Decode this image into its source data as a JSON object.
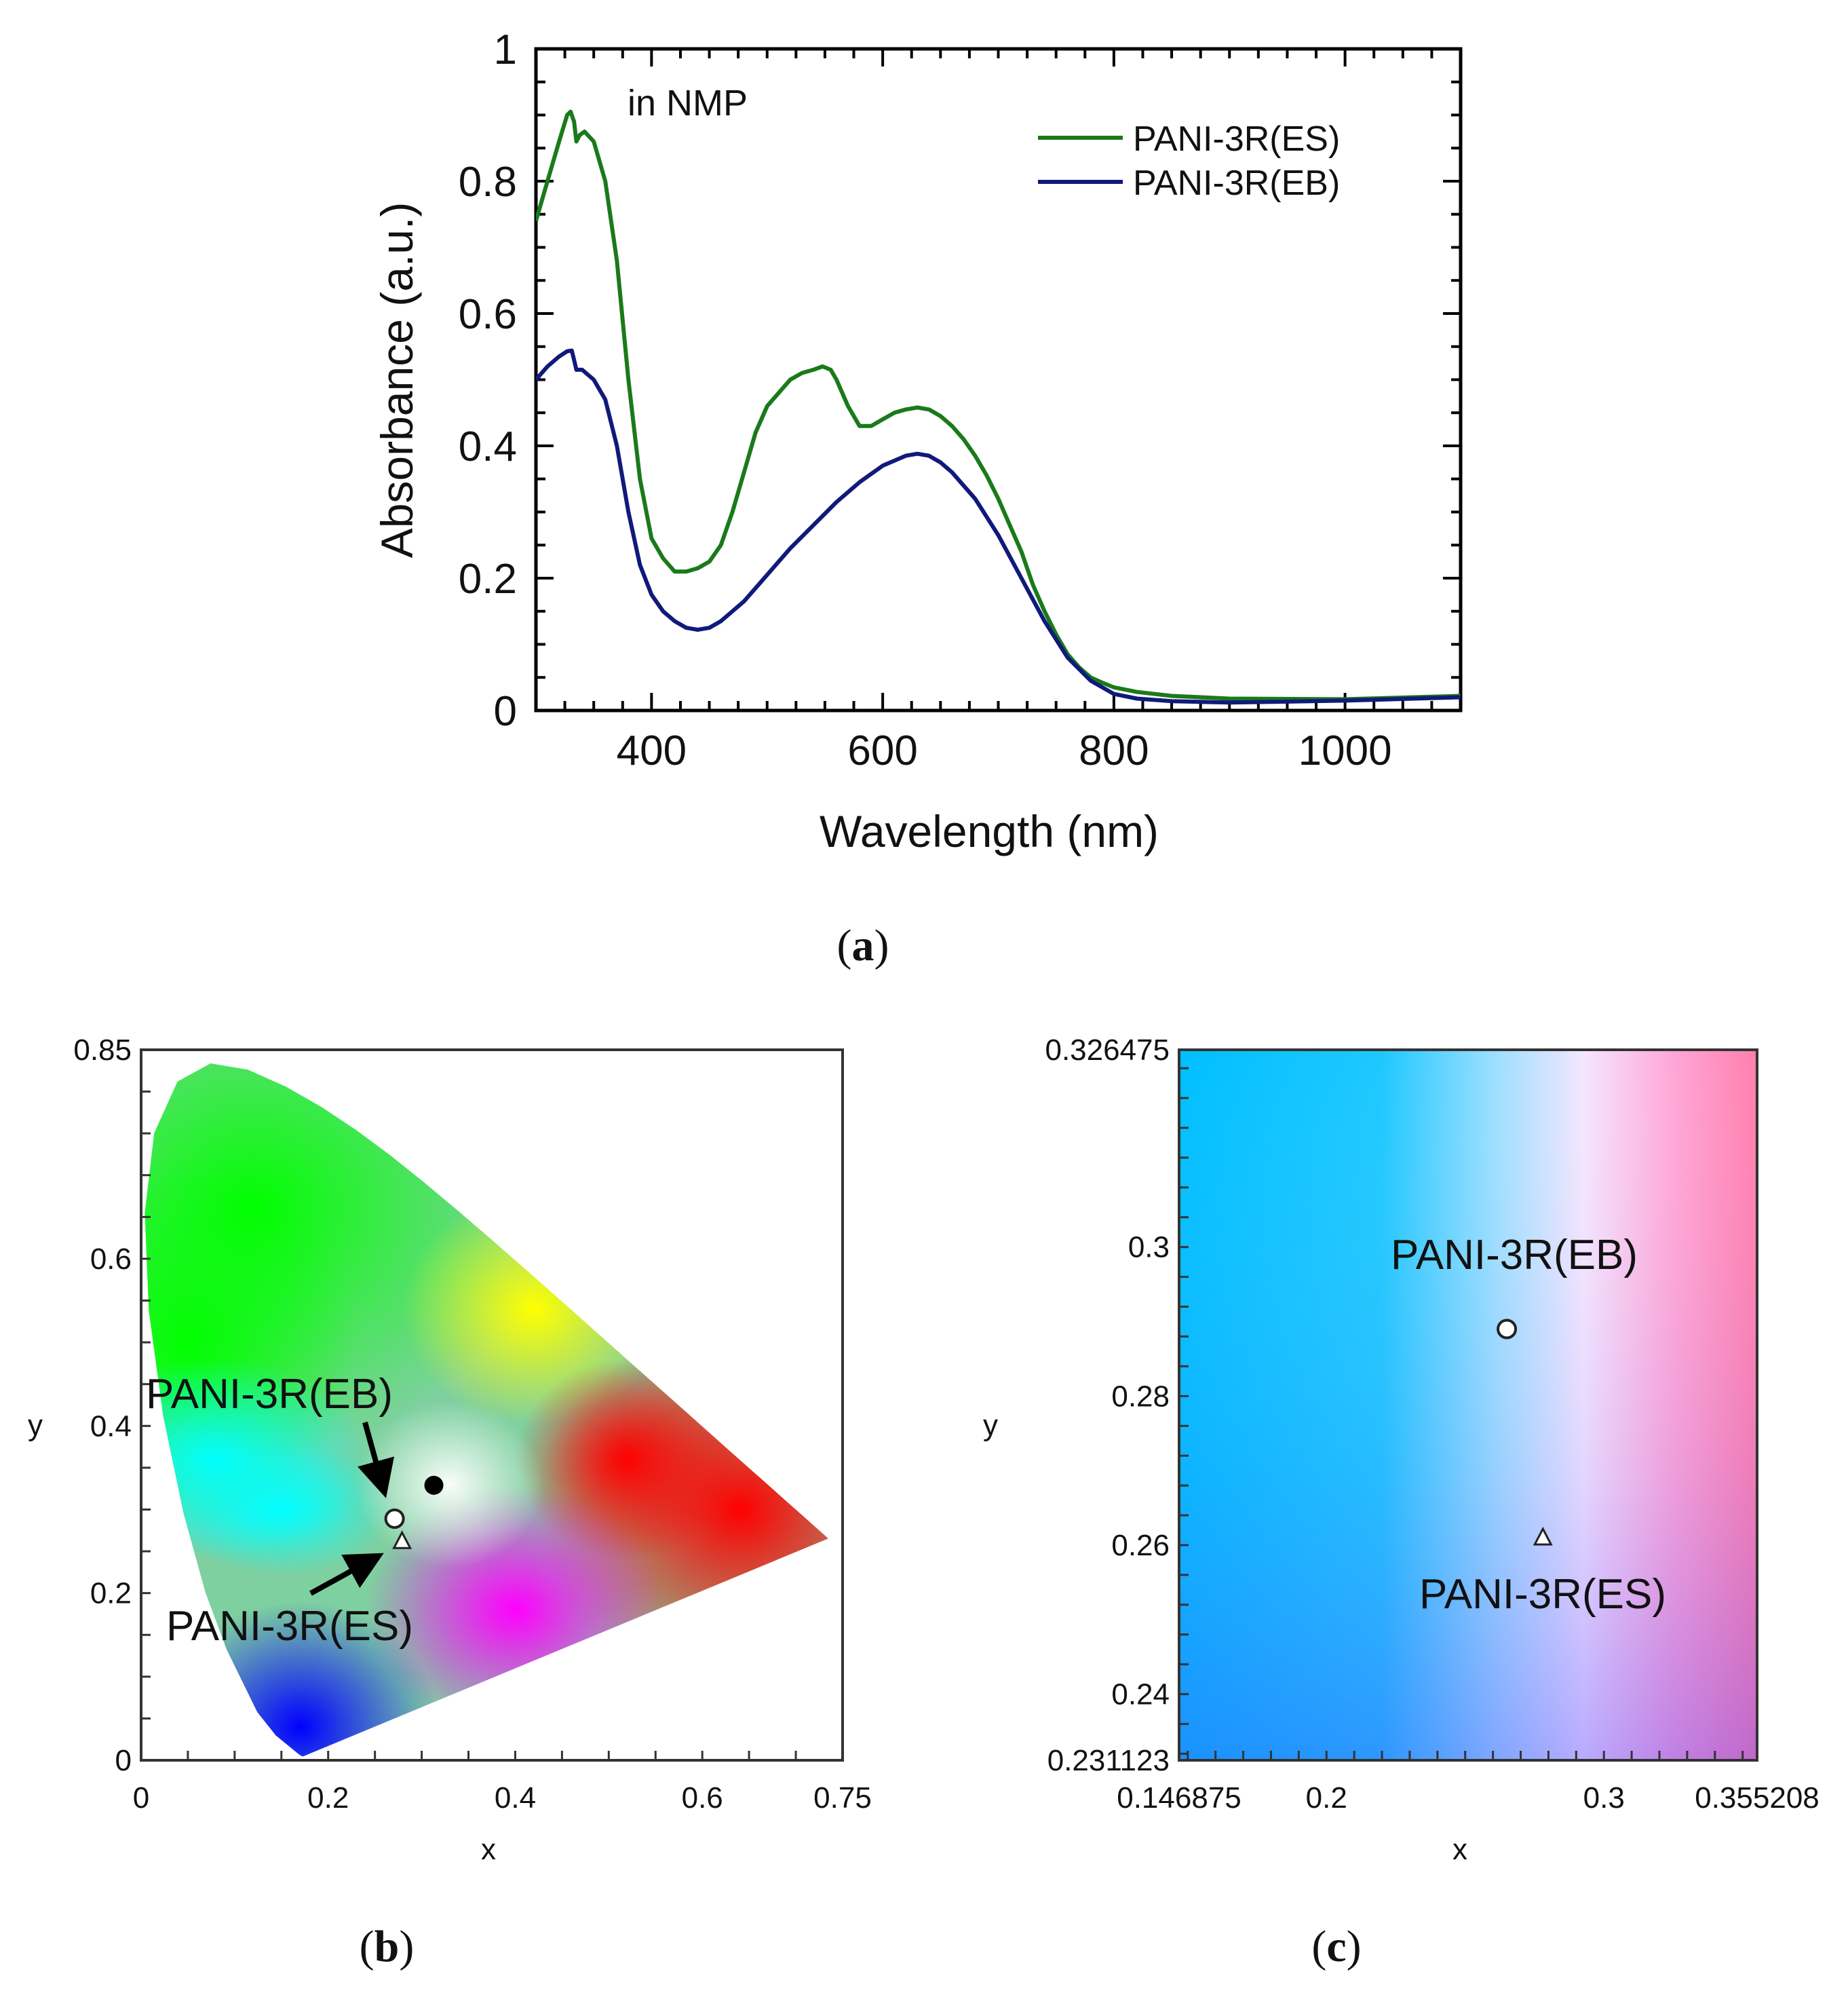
{
  "chart_data": [
    {
      "id": "a",
      "type": "line",
      "panel_label_open": "(",
      "panel_label_letter": "a",
      "panel_label_close": ")",
      "annotation": "in NMP",
      "xlabel": "Wavelength (nm)",
      "ylabel": "Absorbance (a.u.)",
      "xlim": [
        300,
        1100
      ],
      "ylim": [
        0,
        1
      ],
      "xticks": [
        400,
        600,
        800,
        1000
      ],
      "yticks": [
        0,
        0.2,
        0.4,
        0.6,
        0.8,
        1
      ],
      "ytick_labels": [
        "0",
        "0.2",
        "0.4",
        "0.6",
        "0.8",
        "1"
      ],
      "legend_position": "top-right",
      "series": [
        {
          "name": "PANI-3R(ES)",
          "color": "#1a7a1a",
          "points": [
            [
              300,
              0.74
            ],
            [
              310,
              0.8
            ],
            [
              320,
              0.86
            ],
            [
              327,
              0.9
            ],
            [
              330,
              0.905
            ],
            [
              333,
              0.89
            ],
            [
              335,
              0.86
            ],
            [
              338,
              0.87
            ],
            [
              342,
              0.875
            ],
            [
              350,
              0.86
            ],
            [
              360,
              0.8
            ],
            [
              370,
              0.68
            ],
            [
              380,
              0.5
            ],
            [
              390,
              0.35
            ],
            [
              400,
              0.26
            ],
            [
              410,
              0.23
            ],
            [
              420,
              0.21
            ],
            [
              430,
              0.21
            ],
            [
              440,
              0.215
            ],
            [
              450,
              0.225
            ],
            [
              460,
              0.25
            ],
            [
              470,
              0.3
            ],
            [
              480,
              0.36
            ],
            [
              490,
              0.42
            ],
            [
              500,
              0.46
            ],
            [
              510,
              0.48
            ],
            [
              520,
              0.5
            ],
            [
              530,
              0.51
            ],
            [
              540,
              0.515
            ],
            [
              548,
              0.52
            ],
            [
              555,
              0.515
            ],
            [
              560,
              0.5
            ],
            [
              570,
              0.46
            ],
            [
              580,
              0.43
            ],
            [
              590,
              0.43
            ],
            [
              600,
              0.44
            ],
            [
              610,
              0.45
            ],
            [
              620,
              0.455
            ],
            [
              630,
              0.458
            ],
            [
              640,
              0.455
            ],
            [
              650,
              0.445
            ],
            [
              660,
              0.43
            ],
            [
              670,
              0.41
            ],
            [
              680,
              0.385
            ],
            [
              690,
              0.355
            ],
            [
              700,
              0.32
            ],
            [
              710,
              0.28
            ],
            [
              720,
              0.24
            ],
            [
              730,
              0.19
            ],
            [
              740,
              0.15
            ],
            [
              750,
              0.115
            ],
            [
              760,
              0.085
            ],
            [
              770,
              0.065
            ],
            [
              780,
              0.05
            ],
            [
              790,
              0.042
            ],
            [
              800,
              0.035
            ],
            [
              820,
              0.028
            ],
            [
              850,
              0.022
            ],
            [
              900,
              0.018
            ],
            [
              1000,
              0.017
            ],
            [
              1100,
              0.022
            ]
          ]
        },
        {
          "name": "PANI-3R(EB)",
          "color": "#101a7a",
          "points": [
            [
              300,
              0.5
            ],
            [
              310,
              0.52
            ],
            [
              320,
              0.535
            ],
            [
              327,
              0.543
            ],
            [
              331,
              0.544
            ],
            [
              333,
              0.53
            ],
            [
              335,
              0.515
            ],
            [
              340,
              0.515
            ],
            [
              350,
              0.5
            ],
            [
              360,
              0.47
            ],
            [
              370,
              0.4
            ],
            [
              380,
              0.3
            ],
            [
              390,
              0.22
            ],
            [
              400,
              0.175
            ],
            [
              410,
              0.15
            ],
            [
              420,
              0.135
            ],
            [
              430,
              0.125
            ],
            [
              440,
              0.122
            ],
            [
              450,
              0.125
            ],
            [
              460,
              0.135
            ],
            [
              480,
              0.165
            ],
            [
              500,
              0.205
            ],
            [
              520,
              0.245
            ],
            [
              540,
              0.28
            ],
            [
              560,
              0.315
            ],
            [
              580,
              0.345
            ],
            [
              600,
              0.37
            ],
            [
              620,
              0.385
            ],
            [
              630,
              0.388
            ],
            [
              640,
              0.385
            ],
            [
              650,
              0.375
            ],
            [
              660,
              0.36
            ],
            [
              680,
              0.32
            ],
            [
              700,
              0.265
            ],
            [
              720,
              0.2
            ],
            [
              740,
              0.135
            ],
            [
              760,
              0.08
            ],
            [
              780,
              0.045
            ],
            [
              800,
              0.025
            ],
            [
              820,
              0.018
            ],
            [
              850,
              0.014
            ],
            [
              900,
              0.012
            ],
            [
              1000,
              0.015
            ],
            [
              1100,
              0.02
            ]
          ]
        }
      ]
    },
    {
      "id": "b",
      "type": "scatter",
      "panel_label_open": "(",
      "panel_label_letter": "b",
      "panel_label_close": ")",
      "xlabel": "x",
      "ylabel": "y",
      "xlim": [
        0,
        0.75
      ],
      "ylim": [
        0,
        0.85
      ],
      "xticks": [
        0,
        0.2,
        0.4,
        0.6,
        0.75
      ],
      "xtick_labels": [
        "0",
        "0.2",
        "0.4",
        "0.6",
        "0.75"
      ],
      "yticks": [
        0,
        0.2,
        0.4,
        0.6,
        0.85
      ],
      "ytick_labels": [
        "0",
        "0.2",
        "0.4",
        "0.6",
        "0.85"
      ],
      "background": "CIE 1931 chromaticity diagram",
      "points": [
        {
          "name": "PANI-3R(EB)",
          "x": 0.271,
          "y": 0.289,
          "marker": "open-diamond"
        },
        {
          "name": "PANI-3R(ES)",
          "x": 0.279,
          "y": 0.262,
          "marker": "open-triangle"
        },
        {
          "name": "white point",
          "x": 0.313,
          "y": 0.329,
          "marker": "filled-circle"
        }
      ],
      "annotations": [
        {
          "text": "PANI-3R(EB)",
          "target": "PANI-3R(EB)",
          "arrow": true
        },
        {
          "text": "PANI-3R(ES)",
          "target": "PANI-3R(ES)",
          "arrow": true
        }
      ],
      "spectral_locus": [
        [
          0.1741,
          0.005
        ],
        [
          0.1738,
          0.0049
        ],
        [
          0.1733,
          0.0048
        ],
        [
          0.1726,
          0.0048
        ],
        [
          0.1714,
          0.0051
        ],
        [
          0.1689,
          0.0069
        ],
        [
          0.144,
          0.0297
        ],
        [
          0.1241,
          0.0578
        ],
        [
          0.0913,
          0.1327
        ],
        [
          0.0687,
          0.2007
        ],
        [
          0.0454,
          0.295
        ],
        [
          0.0235,
          0.4127
        ],
        [
          0.0082,
          0.5384
        ],
        [
          0.0039,
          0.6548
        ],
        [
          0.0139,
          0.7502
        ],
        [
          0.0389,
          0.812
        ],
        [
          0.0743,
          0.8338
        ],
        [
          0.1142,
          0.8262
        ],
        [
          0.1547,
          0.8059
        ],
        [
          0.1929,
          0.7816
        ],
        [
          0.2296,
          0.7543
        ],
        [
          0.2658,
          0.7243
        ],
        [
          0.3016,
          0.6923
        ],
        [
          0.3373,
          0.6589
        ],
        [
          0.3731,
          0.6245
        ],
        [
          0.4087,
          0.5896
        ],
        [
          0.4441,
          0.5547
        ],
        [
          0.4788,
          0.5202
        ],
        [
          0.5125,
          0.4866
        ],
        [
          0.5448,
          0.4544
        ],
        [
          0.5752,
          0.4242
        ],
        [
          0.6029,
          0.3965
        ],
        [
          0.627,
          0.3725
        ],
        [
          0.6482,
          0.3514
        ],
        [
          0.6658,
          0.334
        ],
        [
          0.6801,
          0.3197
        ],
        [
          0.6915,
          0.3083
        ],
        [
          0.7006,
          0.2993
        ],
        [
          0.7079,
          0.292
        ],
        [
          0.714,
          0.2859
        ],
        [
          0.719,
          0.2809
        ],
        [
          0.723,
          0.277
        ],
        [
          0.726,
          0.274
        ],
        [
          0.7283,
          0.2717
        ],
        [
          0.73,
          0.27
        ],
        [
          0.7311,
          0.2689
        ],
        [
          0.732,
          0.268
        ],
        [
          0.7334,
          0.2666
        ],
        [
          0.7347,
          0.2653
        ]
      ]
    },
    {
      "id": "c",
      "type": "scatter",
      "panel_label_open": "(",
      "panel_label_letter": "c",
      "panel_label_close": ")",
      "xlabel": "x",
      "ylabel": "y",
      "xlim": [
        0.146875,
        0.355208
      ],
      "ylim": [
        0.231123,
        0.326475
      ],
      "xticks": [
        0.146875,
        0.2,
        0.3,
        0.355208
      ],
      "xtick_labels": [
        "0.146875",
        "0.2",
        "0.3",
        "0.355208"
      ],
      "yticks": [
        0.231123,
        0.24,
        0.26,
        0.28,
        0.3,
        0.326475
      ],
      "ytick_labels": [
        "0.231123",
        "0.24",
        "0.26",
        "0.28",
        "0.3",
        "0.326475"
      ],
      "background": "zoomed CIE chromaticity region",
      "points": [
        {
          "name": "PANI-3R(EB)",
          "x": 0.265,
          "y": 0.289,
          "marker": "open-diamond"
        },
        {
          "name": "PANI-3R(ES)",
          "x": 0.278,
          "y": 0.261,
          "marker": "open-triangle"
        }
      ]
    }
  ]
}
